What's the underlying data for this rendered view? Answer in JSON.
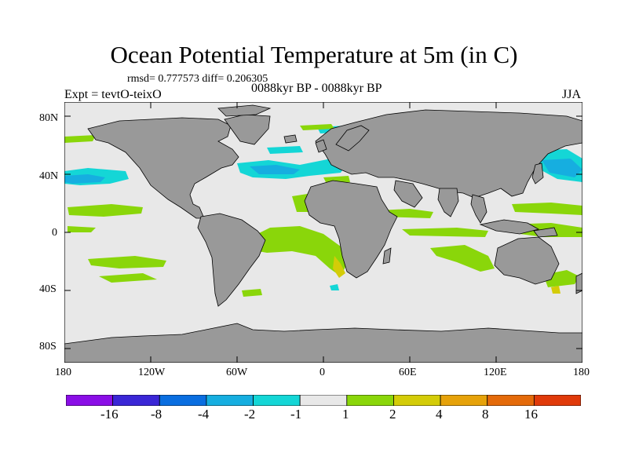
{
  "title": "Ocean Potential Temperature at 5m (in C)",
  "stats_line": "rmsd= 0.777573 diff= 0.206305",
  "left_label": "Expt = tevtO-teixO",
  "center_label": "0088kyr BP - 0088kyr BP",
  "right_label": "JJA",
  "lat_ticks": [
    "80N",
    "40N",
    "0",
    "40S",
    "80S"
  ],
  "lon_ticks": [
    "180",
    "120W",
    "60W",
    "0",
    "60E",
    "120E",
    "180"
  ],
  "colorbar": {
    "colors": [
      "#8a0ee6",
      "#3a26d6",
      "#0a6ee0",
      "#16aee0",
      "#14d6d6",
      "#e8e8e8",
      "#8ad60a",
      "#d4cc08",
      "#e6a20a",
      "#e46a0a",
      "#e03a0a"
    ],
    "labels": [
      "-16",
      "-8",
      "-4",
      "-2",
      "-1",
      "1",
      "2",
      "4",
      "8",
      "16"
    ]
  },
  "map_colors": {
    "ocean_background": "#e8e8e8",
    "land": "#999999",
    "coastline": "#000000"
  }
}
